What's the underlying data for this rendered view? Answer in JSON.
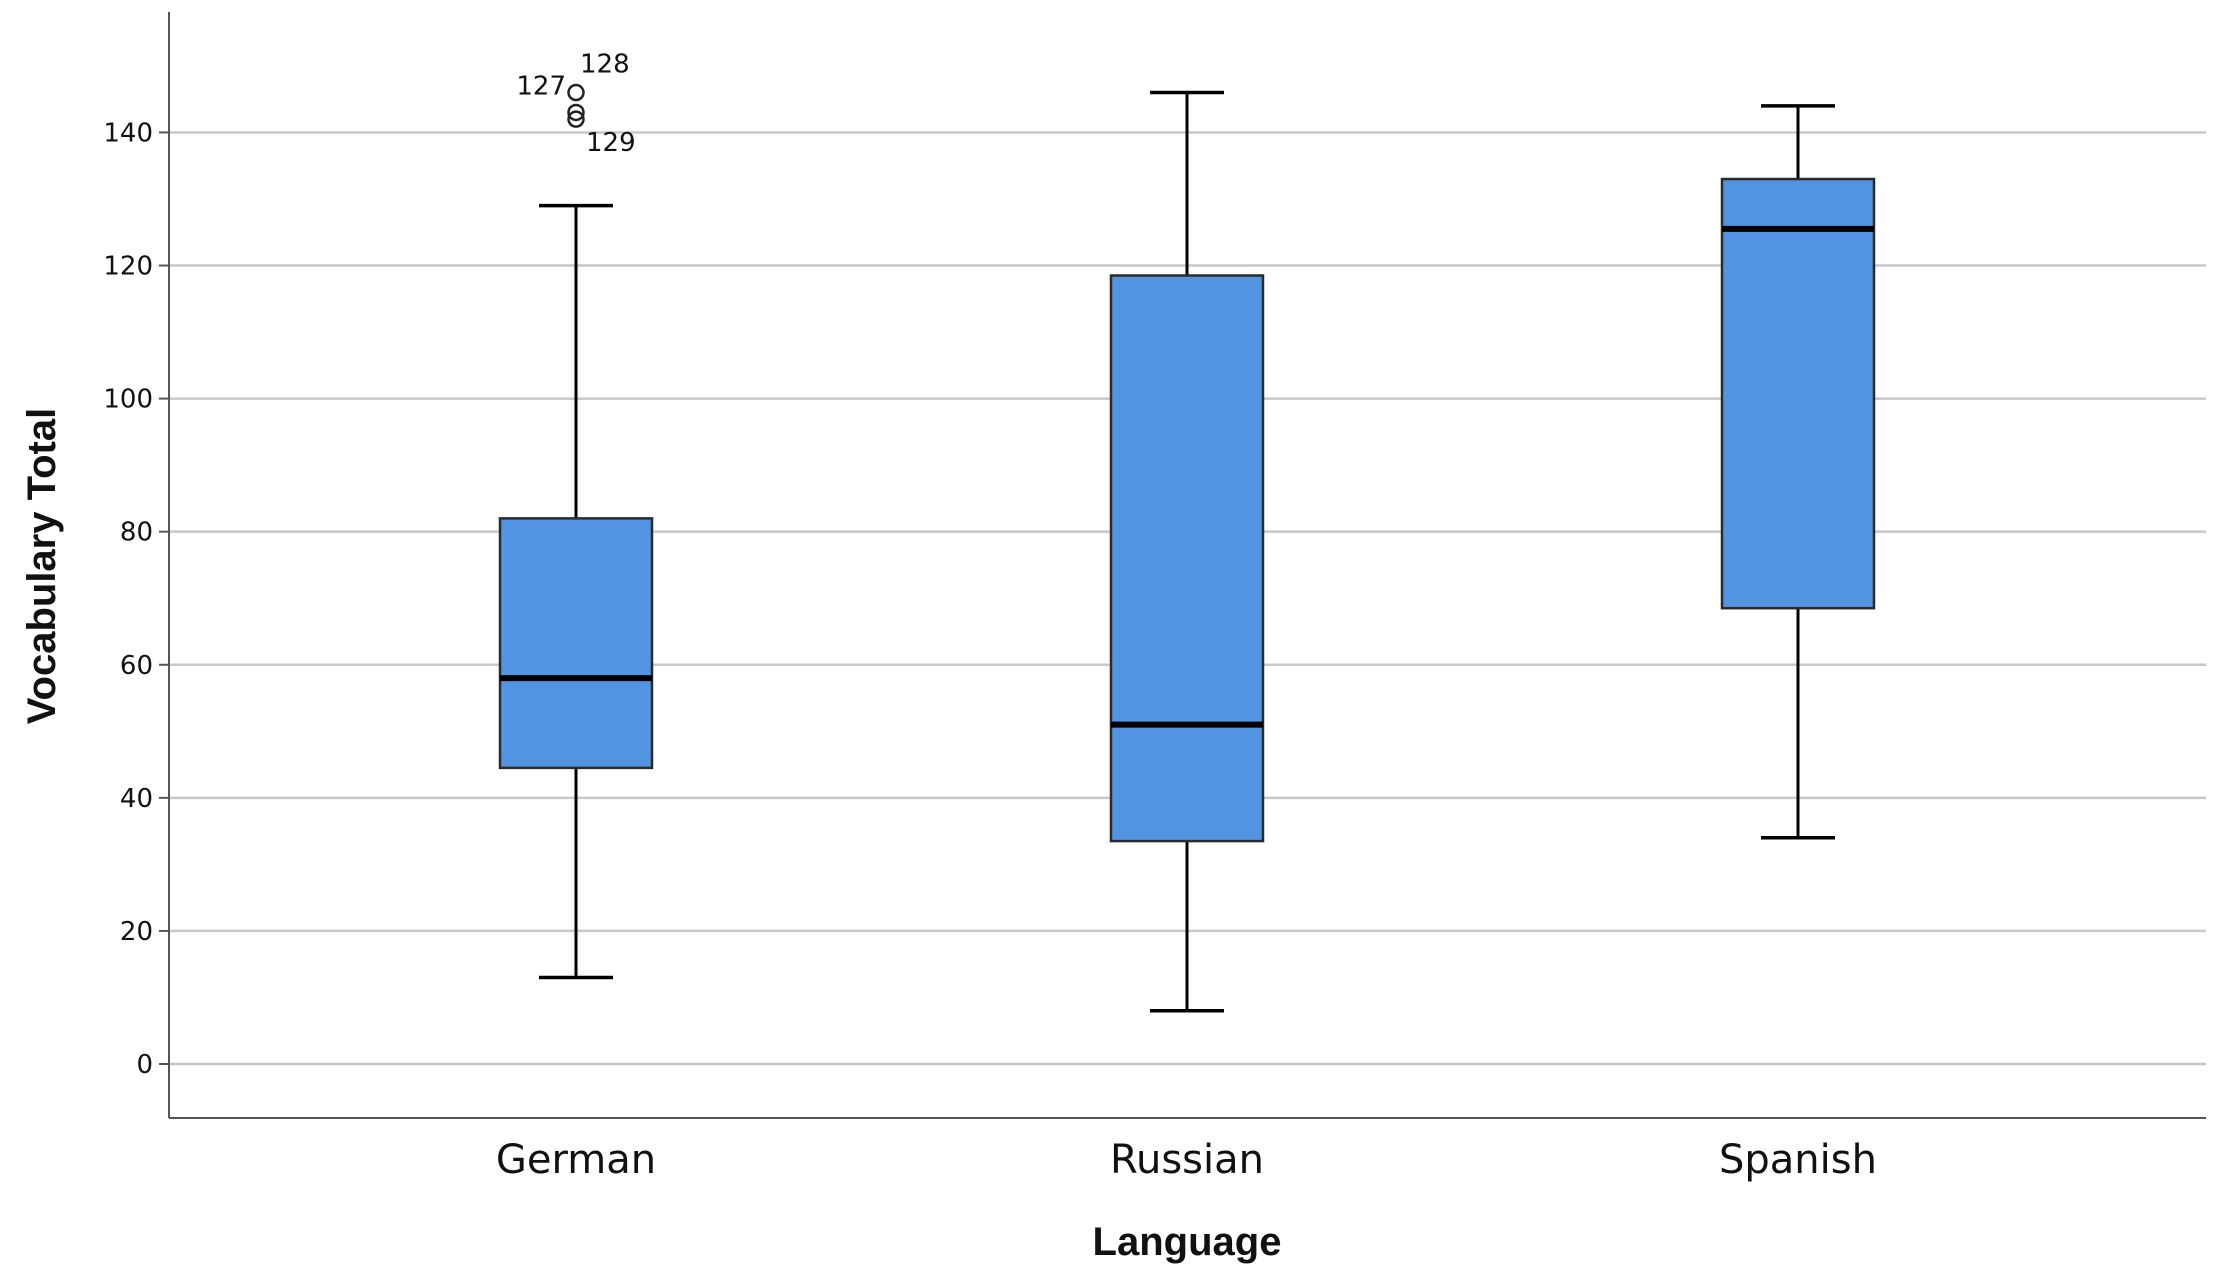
{
  "chart_data": {
    "type": "boxplot",
    "xlabel": "Language",
    "ylabel": "Vocabulary Total",
    "ylim": [
      -8,
      158
    ],
    "yticks": [
      0,
      20,
      40,
      60,
      80,
      100,
      120,
      140
    ],
    "grid": true,
    "box_color": "#5294e2",
    "categories": [
      "German",
      "Russian",
      "Spanish"
    ],
    "boxes": [
      {
        "category": "German",
        "whisker_low": 13,
        "q1": 44.5,
        "median": 58,
        "q3": 82,
        "whisker_high": 129,
        "outliers": [
          {
            "id": "128",
            "value": 146
          },
          {
            "id": "127",
            "value": 143
          },
          {
            "id": "129",
            "value": 142
          }
        ]
      },
      {
        "category": "Russian",
        "whisker_low": 8,
        "q1": 33.5,
        "median": 51,
        "q3": 118.5,
        "whisker_high": 146,
        "outliers": []
      },
      {
        "category": "Spanish",
        "whisker_low": 34,
        "q1": 68.5,
        "median": 125.5,
        "q3": 133,
        "whisker_high": 144,
        "outliers": []
      }
    ]
  }
}
